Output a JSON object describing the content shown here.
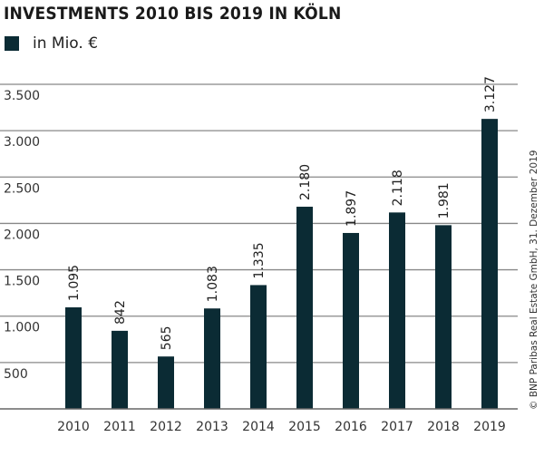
{
  "chart_data": {
    "type": "bar",
    "title": "INVESTMENTS 2010 BIS 2019 IN KÖLN",
    "legend": [
      {
        "label": "in Mio. €",
        "color": "#0b2b34"
      }
    ],
    "legend_placement": "top-left",
    "categories": [
      "2010",
      "2011",
      "2012",
      "2013",
      "2014",
      "2015",
      "2016",
      "2017",
      "2018",
      "2019"
    ],
    "values": [
      1095,
      842,
      565,
      1083,
      1335,
      2180,
      1897,
      2118,
      1981,
      3127
    ],
    "value_labels": [
      "1.095",
      "842",
      "565",
      "1.083",
      "1.335",
      "2.180",
      "1.897",
      "2.118",
      "1.981",
      "3.127"
    ],
    "yticks": [
      500,
      1000,
      1500,
      2000,
      2500,
      3000,
      3500
    ],
    "ytick_labels": [
      "500",
      "1.000",
      "1.500",
      "2.000",
      "2.500",
      "3.000",
      "3.500"
    ],
    "ylim": [
      0,
      3500
    ],
    "grid": true,
    "bar_color": "#0b2b34",
    "xlabel": "",
    "ylabel": ""
  },
  "credit": "© BNP Paribas Real Estate GmbH, 31. Dezember 2019"
}
